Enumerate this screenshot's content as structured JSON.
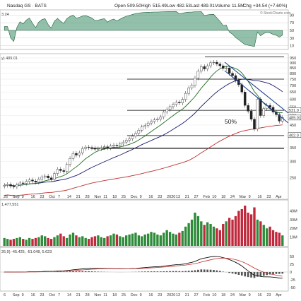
{
  "header": {
    "symbol": "Nasdaq GS · BATS",
    "open_label": "Open",
    "open": "509.50",
    "high_label": "High",
    "high": "515.49",
    "low_label": "Low",
    "low": "482.53",
    "last_label": "Last",
    "last": "489.01",
    "volume_label": "Volume",
    "volume": "11.5M",
    "change_label": "Chg",
    "change": "+34.54 (+7.60%)",
    "watermark": "© StockCharts.com"
  },
  "rsi_pane": {
    "left_value": "3.24",
    "levels": [
      "90",
      "70",
      "50",
      "30",
      "10"
    ]
  },
  "price_pane": {
    "left_label": "y) 489.01",
    "fib_label": "50%"
  },
  "volume_pane": {
    "left_label": "1,477,551"
  },
  "macd_pane": {
    "left_label": "26,9) -45.425, -51.048, 5.623"
  },
  "colors": {
    "up": "#2e8b3a",
    "down": "#c0283c",
    "sma_short": "#1f6b1f",
    "sma_long": "#c03030",
    "sma_mid": "#1a1a6e",
    "channel": "#1c3f8f",
    "rsi_fill": "#3a8c64",
    "level": "#000000"
  },
  "chart_data": {
    "type": "candlestick",
    "price_axis_ticks": [
      "950",
      "900",
      "850",
      "800",
      "750",
      "700",
      "650",
      "600",
      "550",
      "500",
      "450",
      "400",
      "350",
      "300",
      "250"
    ],
    "price_axis_markers": [
      "489.01",
      "531.0",
      "402.0"
    ],
    "horizontal_levels": [
      960,
      750,
      530,
      400,
      347
    ],
    "x_axis_labels": [
      "26",
      "Sep",
      "9",
      "16",
      "23",
      "Oct",
      "7",
      "14",
      "21",
      "28",
      "Nov",
      "11",
      "18",
      "25",
      "Dec",
      "9",
      "16",
      "23",
      "2020",
      "13",
      "21",
      "27",
      "Feb",
      "10",
      "18",
      "24",
      "Mar",
      "9",
      "16",
      "23",
      "Apr"
    ],
    "bottom_axis_labels": [
      "6",
      "Sep",
      "9",
      "16",
      "23",
      "Oct",
      "7",
      "14",
      "21",
      "28",
      "Nov",
      "11",
      "18",
      "25",
      "Dec",
      "9",
      "16",
      "23",
      "2020",
      "13",
      "21",
      "27",
      "Feb",
      "10",
      "18",
      "24",
      "Mar",
      "9",
      "16",
      "23",
      "Apr"
    ],
    "volume_ticks": [
      "40M",
      "30M",
      "20M",
      "10M"
    ],
    "macd_ticks": [
      "50",
      "25",
      "0",
      "-25",
      "-50"
    ],
    "closes": [
      230,
      232,
      228,
      226,
      231,
      236,
      235,
      240,
      244,
      241,
      238,
      246,
      252,
      255,
      250,
      246,
      262,
      275,
      271,
      268,
      290,
      310,
      328,
      322,
      330,
      346,
      352,
      350,
      348,
      344,
      346,
      350,
      353,
      349,
      356,
      360,
      358,
      364,
      372,
      380,
      386,
      398,
      410,
      425,
      440,
      448,
      460,
      468,
      476,
      480,
      492,
      520,
      535,
      552,
      566,
      580,
      575,
      598,
      640,
      680,
      700,
      760,
      820,
      862,
      840,
      870,
      900,
      905,
      888,
      870,
      845,
      850,
      800,
      780,
      740,
      705,
      650,
      560,
      525,
      480,
      430,
      600,
      500,
      540,
      560,
      548,
      520,
      505,
      470,
      489
    ],
    "volumes": [
      9,
      8,
      7,
      8,
      9,
      10,
      8,
      7,
      9,
      8,
      9,
      10,
      12,
      11,
      9,
      8,
      10,
      12,
      14,
      11,
      9,
      13,
      15,
      12,
      10,
      11,
      9,
      8,
      10,
      11,
      12,
      10,
      9,
      11,
      12,
      14,
      13,
      11,
      10,
      12,
      13,
      14,
      15,
      12,
      11,
      13,
      14,
      16,
      15,
      13,
      12,
      15,
      18,
      16,
      14,
      13,
      15,
      17,
      22,
      26,
      30,
      38,
      34,
      28,
      24,
      27,
      25,
      22,
      20,
      18,
      25,
      28,
      32,
      30,
      34,
      40,
      42,
      46,
      38,
      36,
      44,
      30,
      28,
      24,
      20,
      22,
      18,
      16,
      15,
      12
    ],
    "annotations": [
      "50%"
    ]
  }
}
